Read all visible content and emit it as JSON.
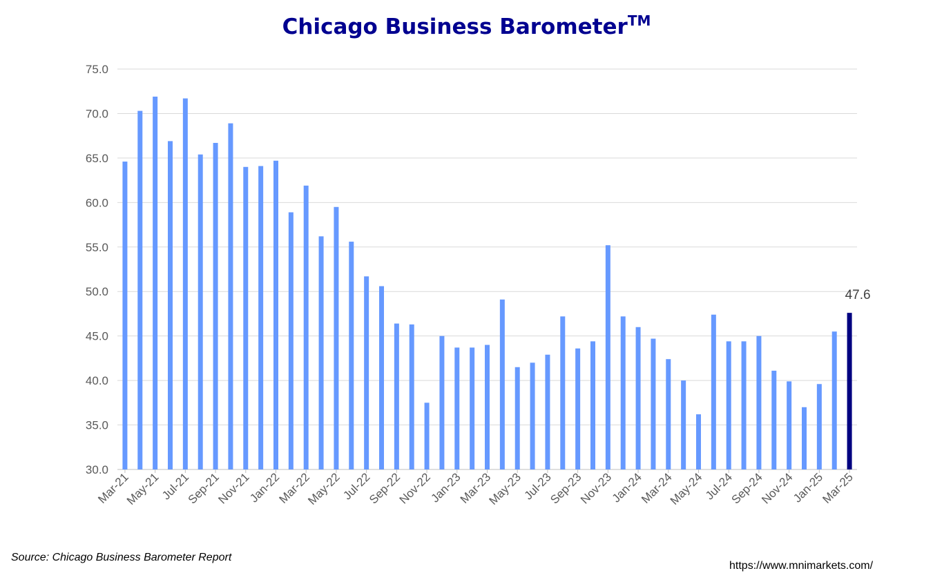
{
  "title": {
    "text": "Chicago Business Barometer",
    "tm": "TM"
  },
  "source": "Source: Chicago Business Barometer Report",
  "url": "https://www.mnimarkets.com/",
  "chart_data": {
    "type": "bar",
    "title": "Chicago Business BarometerTM",
    "ylim": [
      30,
      75
    ],
    "yticks": [
      "30.0",
      "35.0",
      "40.0",
      "45.0",
      "50.0",
      "55.0",
      "60.0",
      "65.0",
      "70.0",
      "75.0"
    ],
    "grid": true,
    "categories": [
      "Mar-21",
      "Apr-21",
      "May-21",
      "Jun-21",
      "Jul-21",
      "Aug-21",
      "Sep-21",
      "Oct-21",
      "Nov-21",
      "Dec-21",
      "Jan-22",
      "Feb-22",
      "Mar-22",
      "Apr-22",
      "May-22",
      "Jun-22",
      "Jul-22",
      "Aug-22",
      "Sep-22",
      "Oct-22",
      "Nov-22",
      "Dec-22",
      "Jan-23",
      "Feb-23",
      "Mar-23",
      "Apr-23",
      "May-23",
      "Jun-23",
      "Jul-23",
      "Aug-23",
      "Sep-23",
      "Oct-23",
      "Nov-23",
      "Dec-23",
      "Jan-24",
      "Feb-24",
      "Mar-24",
      "Apr-24",
      "May-24",
      "Jun-24",
      "Jul-24",
      "Aug-24",
      "Sep-24",
      "Oct-24",
      "Nov-24",
      "Dec-24",
      "Jan-25",
      "Feb-25",
      "Mar-25"
    ],
    "values": [
      64.6,
      70.3,
      71.9,
      66.9,
      71.7,
      65.4,
      66.7,
      68.9,
      64.0,
      64.1,
      64.7,
      58.9,
      61.9,
      56.2,
      59.5,
      55.6,
      51.7,
      50.6,
      46.4,
      46.3,
      37.5,
      45.0,
      43.7,
      43.7,
      44.0,
      49.1,
      41.5,
      42.0,
      42.9,
      47.2,
      43.6,
      44.4,
      55.2,
      47.2,
      46.0,
      44.7,
      42.4,
      40.0,
      36.2,
      47.4,
      44.4,
      44.4,
      45.0,
      41.1,
      39.9,
      37.0,
      39.6,
      45.5,
      47.6
    ],
    "x_tick_labels": [
      "Mar-21",
      "May-21",
      "Jul-21",
      "Sep-21",
      "Nov-21",
      "Jan-22",
      "Mar-22",
      "May-22",
      "Jul-22",
      "Sep-22",
      "Nov-22",
      "Jan-23",
      "Mar-23",
      "May-23",
      "Jul-23",
      "Sep-23",
      "Nov-23",
      "Jan-24",
      "Mar-24",
      "May-24",
      "Jul-24",
      "Sep-24",
      "Nov-24",
      "Jan-25",
      "Mar-25"
    ],
    "last_value_label": "47.6",
    "colors": {
      "bar": "#6699FF",
      "highlight": "#000080",
      "grid": "#D9D9D9",
      "axis": "#BFBFBF"
    }
  }
}
